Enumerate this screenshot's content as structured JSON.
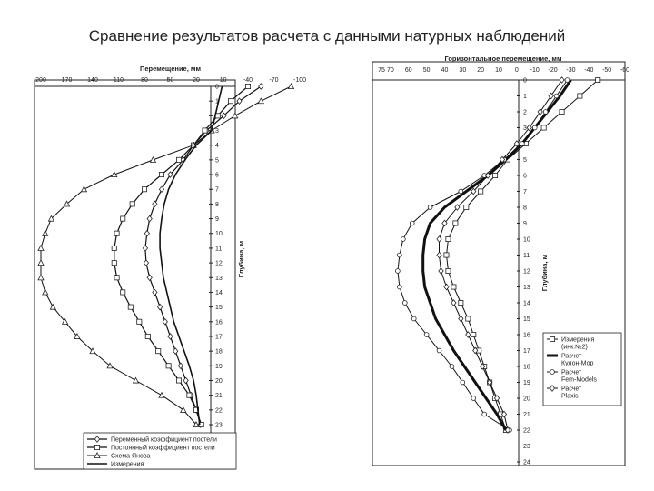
{
  "slide": {
    "title": "Сравнение результатов расчета с данными натурных наблюдений"
  },
  "chart_data": [
    {
      "type": "line",
      "title": "",
      "xlabel": "Перемещение, мм",
      "ylabel": "Глубина, м",
      "xlim": [
        200,
        -100
      ],
      "ylim": [
        0,
        23
      ],
      "x_ticks": [
        "200",
        "170",
        "140",
        "110",
        "80",
        "50",
        "20",
        "-10",
        "-40",
        "-70",
        "-100"
      ],
      "y_ticks": [
        "0",
        "1",
        "2",
        "3",
        "4",
        "5",
        "6",
        "7",
        "8",
        "9",
        "10",
        "11",
        "12",
        "13",
        "14",
        "15",
        "16",
        "17",
        "18",
        "19",
        "20",
        "21",
        "22",
        "23"
      ],
      "grid": false,
      "legend_position": "bottom",
      "series": [
        {
          "name": "Переменный коэффициент постели",
          "marker": "diamond",
          "points": [
            [
              -55,
              0
            ],
            [
              -30,
              1
            ],
            [
              -12,
              2
            ],
            [
              8,
              3
            ],
            [
              23,
              4
            ],
            [
              35,
              5
            ],
            [
              50,
              6
            ],
            [
              60,
              7
            ],
            [
              68,
              8
            ],
            [
              74,
              9
            ],
            [
              77,
              10
            ],
            [
              79,
              11
            ],
            [
              78,
              12
            ],
            [
              74,
              13
            ],
            [
              68,
              14
            ],
            [
              62,
              15
            ],
            [
              56,
              16
            ],
            [
              50,
              17
            ],
            [
              44,
              18
            ],
            [
              38,
              19
            ],
            [
              32,
              20
            ],
            [
              26,
              21
            ],
            [
              20,
              22
            ],
            [
              15,
              23
            ]
          ]
        },
        {
          "name": "Постоянный коэффициент постели",
          "marker": "square",
          "points": [
            [
              -40,
              0
            ],
            [
              -20,
              1
            ],
            [
              -5,
              2
            ],
            [
              10,
              3
            ],
            [
              23,
              4
            ],
            [
              40,
              5
            ],
            [
              60,
              6
            ],
            [
              80,
              7
            ],
            [
              94,
              8
            ],
            [
              105,
              9
            ],
            [
              112,
              10
            ],
            [
              115,
              11
            ],
            [
              115,
              12
            ],
            [
              112,
              13
            ],
            [
              105,
              14
            ],
            [
              96,
              15
            ],
            [
              86,
              16
            ],
            [
              76,
              17
            ],
            [
              64,
              18
            ],
            [
              52,
              19
            ],
            [
              40,
              20
            ],
            [
              28,
              21
            ],
            [
              20,
              22
            ],
            [
              14,
              23
            ]
          ]
        },
        {
          "name": "Схема Янова",
          "marker": "triangle",
          "points": [
            [
              -90,
              0
            ],
            [
              -55,
              1
            ],
            [
              -25,
              2
            ],
            [
              2,
              3
            ],
            [
              23,
              4
            ],
            [
              70,
              5
            ],
            [
              115,
              6
            ],
            [
              150,
              7
            ],
            [
              170,
              8
            ],
            [
              188,
              9
            ],
            [
              195,
              10
            ],
            [
              200,
              11
            ],
            [
              200,
              12
            ],
            [
              200,
              13
            ],
            [
              195,
              14
            ],
            [
              186,
              15
            ],
            [
              172,
              16
            ],
            [
              158,
              17
            ],
            [
              140,
              18
            ],
            [
              120,
              19
            ],
            [
              90,
              20
            ],
            [
              60,
              21
            ],
            [
              35,
              22
            ],
            [
              20,
              23
            ]
          ]
        },
        {
          "name": "Измерения",
          "marker": "none",
          "points": [
            [
              -10,
              0
            ],
            [
              -6,
              1
            ],
            [
              -2,
              2
            ],
            [
              2,
              3
            ],
            [
              20,
              4
            ],
            [
              33,
              5
            ],
            [
              44,
              6
            ],
            [
              52,
              7
            ],
            [
              57,
              8
            ],
            [
              60,
              9
            ],
            [
              62,
              10
            ],
            [
              62,
              11
            ],
            [
              60,
              12
            ],
            [
              58,
              13
            ],
            [
              54,
              14
            ],
            [
              50,
              15
            ],
            [
              46,
              16
            ],
            [
              40,
              17
            ],
            [
              34,
              18
            ],
            [
              28,
              19
            ],
            [
              23,
              20
            ],
            [
              20,
              21
            ],
            [
              18,
              22
            ],
            [
              16,
              23
            ]
          ]
        }
      ]
    },
    {
      "type": "line",
      "title": "",
      "xlabel": "Горизонтальное перемещение, мм",
      "ylabel": "Глубина, м",
      "xlim": [
        75,
        -60
      ],
      "ylim": [
        0,
        24
      ],
      "x_ticks": [
        "75",
        "70",
        "60",
        "50",
        "40",
        "30",
        "20",
        "10",
        "0",
        "-10",
        "-20",
        "-30",
        "-40",
        "-50",
        "-60"
      ],
      "y_ticks": [
        "0",
        "1",
        "2",
        "3",
        "4",
        "5",
        "6",
        "7",
        "8",
        "9",
        "10",
        "11",
        "12",
        "13",
        "14",
        "15",
        "16",
        "17",
        "18",
        "19",
        "20",
        "21",
        "22",
        "23",
        "24"
      ],
      "grid": false,
      "legend_position": "right",
      "series": [
        {
          "name": "Измерения (инк.№2)",
          "marker": "square",
          "points": [
            [
              -45,
              0
            ],
            [
              -35,
              1
            ],
            [
              -25,
              2
            ],
            [
              -15,
              3
            ],
            [
              -5,
              4
            ],
            [
              5,
              5
            ],
            [
              12,
              6
            ],
            [
              20,
              7
            ],
            [
              28,
              8
            ],
            [
              34,
              9
            ],
            [
              38,
              10
            ],
            [
              39,
              11
            ],
            [
              38,
              12
            ],
            [
              35,
              13
            ],
            [
              31,
              14
            ],
            [
              27,
              15
            ],
            [
              24,
              16
            ],
            [
              21,
              17
            ],
            [
              18,
              18
            ],
            [
              15,
              19
            ],
            [
              12,
              20
            ],
            [
              9,
              21
            ],
            [
              6,
              22
            ]
          ]
        },
        {
          "name": "Расчет Кулон-Мор",
          "marker": "none",
          "points": [
            [
              -30,
              0
            ],
            [
              -24,
              1
            ],
            [
              -17,
              2
            ],
            [
              -10,
              3
            ],
            [
              -3,
              4
            ],
            [
              6,
              5
            ],
            [
              16,
              6
            ],
            [
              28,
              7
            ],
            [
              40,
              8
            ],
            [
              48,
              9
            ],
            [
              51,
              10
            ],
            [
              52,
              11
            ],
            [
              52,
              12
            ],
            [
              51,
              13
            ],
            [
              48,
              14
            ],
            [
              45,
              15
            ],
            [
              40,
              16
            ],
            [
              35,
              17
            ],
            [
              29,
              18
            ],
            [
              23,
              19
            ],
            [
              17,
              20
            ],
            [
              11,
              21
            ],
            [
              6,
              22
            ]
          ]
        },
        {
          "name": "Расчет Fem-Models",
          "marker": "circle",
          "points": [
            [
              -28,
              0
            ],
            [
              -22,
              1
            ],
            [
              -16,
              2
            ],
            [
              -10,
              3
            ],
            [
              -3,
              4
            ],
            [
              7,
              5
            ],
            [
              18,
              6
            ],
            [
              31,
              7
            ],
            [
              48,
              8
            ],
            [
              58,
              9
            ],
            [
              63,
              10
            ],
            [
              65,
              11
            ],
            [
              66,
              12
            ],
            [
              65,
              13
            ],
            [
              62,
              14
            ],
            [
              57,
              15
            ],
            [
              50,
              16
            ],
            [
              43,
              17
            ],
            [
              36,
              18
            ],
            [
              30,
              19
            ],
            [
              24,
              20
            ],
            [
              18,
              21
            ],
            [
              4,
              22
            ]
          ]
        },
        {
          "name": "Расчет Plaxis",
          "marker": "diamond",
          "points": [
            [
              -25,
              0
            ],
            [
              -19,
              1
            ],
            [
              -13,
              2
            ],
            [
              -7,
              3
            ],
            [
              0,
              4
            ],
            [
              8,
              5
            ],
            [
              16,
              6
            ],
            [
              24,
              7
            ],
            [
              33,
              8
            ],
            [
              40,
              9
            ],
            [
              43,
              10
            ],
            [
              43,
              11
            ],
            [
              42,
              12
            ],
            [
              39,
              13
            ],
            [
              35,
              14
            ],
            [
              31,
              15
            ],
            [
              27,
              16
            ],
            [
              23,
              17
            ],
            [
              19,
              18
            ],
            [
              15,
              19
            ],
            [
              11,
              20
            ],
            [
              7,
              21
            ],
            [
              5,
              22
            ]
          ]
        }
      ]
    }
  ]
}
